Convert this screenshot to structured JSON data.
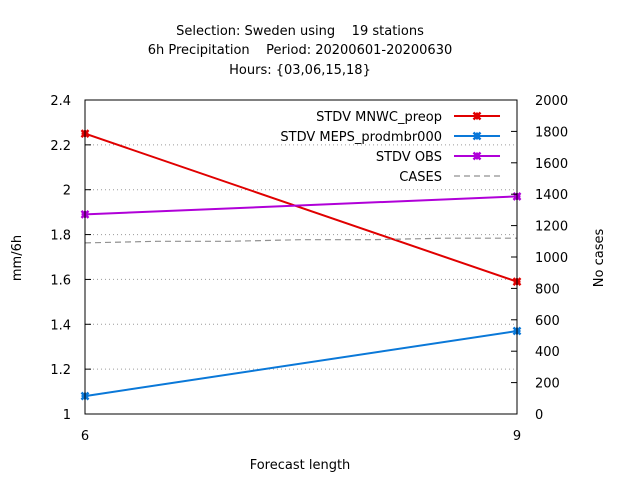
{
  "chart_data": {
    "type": "line",
    "title_lines": [
      "Selection: Sweden using    19 stations",
      "6h Precipitation    Period: 20200601-20200630",
      "Hours: {03,06,15,18}"
    ],
    "xlabel": "Forecast length",
    "ylabel": "mm/6h",
    "y2label": "No cases",
    "x": [
      6,
      9
    ],
    "x_ticks": [
      "6",
      "9"
    ],
    "ylim": [
      1,
      2.4
    ],
    "y_ticks": [
      "1",
      "1.2",
      "1.4",
      "1.6",
      "1.8",
      "2",
      "2.2",
      "2.4"
    ],
    "y2lim": [
      0,
      2000
    ],
    "y2_ticks": [
      "0",
      "200",
      "400",
      "600",
      "800",
      "1000",
      "1200",
      "1400",
      "1600",
      "1800",
      "2000"
    ],
    "grid": "horizontal dotted",
    "legend_position": "top-right",
    "series": [
      {
        "name": "STDV MNWC_preop",
        "axis": "left",
        "color": "#e00000",
        "style": "line-markers",
        "values": [
          2.25,
          1.59
        ]
      },
      {
        "name": "STDV MEPS_prodmbr000",
        "axis": "left",
        "color": "#0a78d8",
        "style": "line-markers",
        "values": [
          1.08,
          1.37
        ]
      },
      {
        "name": "STDV OBS",
        "axis": "left",
        "color": "#b000d8",
        "style": "line-markers",
        "values": [
          1.89,
          1.97
        ]
      },
      {
        "name": "CASES",
        "axis": "right",
        "color": "#909090",
        "style": "dashed",
        "x": [
          6,
          6.5,
          7,
          7.5,
          8,
          8.5,
          9
        ],
        "values": [
          1090,
          1100,
          1100,
          1110,
          1110,
          1120,
          1120
        ]
      }
    ]
  }
}
